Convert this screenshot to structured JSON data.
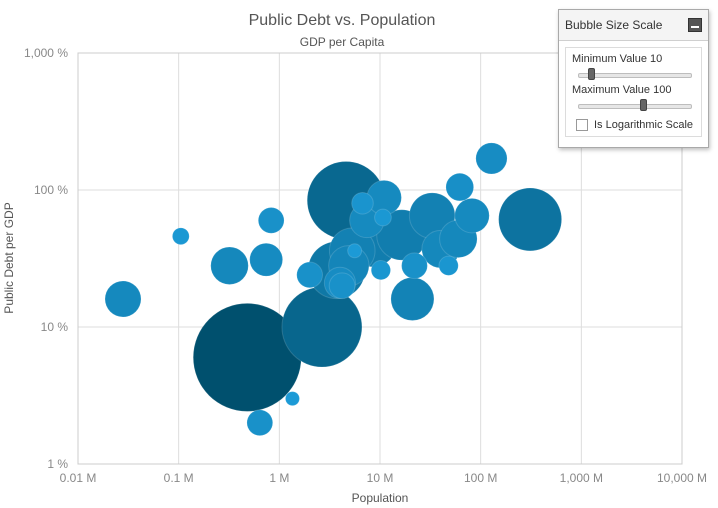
{
  "chart_data": {
    "type": "scatter",
    "title": "Public Debt vs. Population",
    "subtitle": "GDP per Capita",
    "xlabel": "Population",
    "ylabel": "Public Debt per GDP",
    "x_scale": "log",
    "y_scale": "log",
    "xlim": [
      10000,
      10000000000
    ],
    "ylim": [
      1,
      1000
    ],
    "x_ticks": [
      {
        "value": 10000,
        "label": "0.01 M"
      },
      {
        "value": 100000,
        "label": "0.1 M"
      },
      {
        "value": 1000000,
        "label": "1 M"
      },
      {
        "value": 10000000,
        "label": "10 M"
      },
      {
        "value": 100000000,
        "label": "100 M"
      },
      {
        "value": 1000000000,
        "label": "1,000 M"
      },
      {
        "value": 10000000000,
        "label": "10,000 M"
      }
    ],
    "y_ticks": [
      {
        "value": 1,
        "label": "1 %"
      },
      {
        "value": 10,
        "label": "10 %"
      },
      {
        "value": 100,
        "label": "100 %"
      },
      {
        "value": 1000,
        "label": "1,000 %"
      }
    ],
    "grid": true,
    "legend": "none",
    "color_low": "#1c9ad6",
    "color_high": "#00506e",
    "points": [
      {
        "x": 28000,
        "y": 16,
        "size": 15
      },
      {
        "x": 105000,
        "y": 46,
        "size": 5
      },
      {
        "x": 320000,
        "y": 28,
        "size": 16
      },
      {
        "x": 480000,
        "y": 6,
        "size": 100
      },
      {
        "x": 640000,
        "y": 2,
        "size": 9
      },
      {
        "x": 740000,
        "y": 31,
        "size": 13
      },
      {
        "x": 830000,
        "y": 60,
        "size": 9
      },
      {
        "x": 1350000,
        "y": 3,
        "size": 4
      },
      {
        "x": 2000000,
        "y": 24,
        "size": 9
      },
      {
        "x": 2650000,
        "y": 10,
        "size": 58
      },
      {
        "x": 3700000,
        "y": 26,
        "size": 32
      },
      {
        "x": 4000000,
        "y": 21,
        "size": 12
      },
      {
        "x": 4200000,
        "y": 20,
        "size": 9
      },
      {
        "x": 4600000,
        "y": 84,
        "size": 55
      },
      {
        "x": 4900000,
        "y": 28,
        "size": 18
      },
      {
        "x": 5300000,
        "y": 36,
        "size": 22
      },
      {
        "x": 5600000,
        "y": 36,
        "size": 4
      },
      {
        "x": 6700000,
        "y": 80,
        "size": 7
      },
      {
        "x": 7400000,
        "y": 60,
        "size": 14
      },
      {
        "x": 8400000,
        "y": 42,
        "size": 26
      },
      {
        "x": 10200000,
        "y": 26,
        "size": 6
      },
      {
        "x": 10700000,
        "y": 63,
        "size": 5
      },
      {
        "x": 11000000,
        "y": 88,
        "size": 14
      },
      {
        "x": 16500000,
        "y": 47,
        "size": 26
      },
      {
        "x": 21000000,
        "y": 16,
        "size": 20
      },
      {
        "x": 22000000,
        "y": 28,
        "size": 9
      },
      {
        "x": 33000000,
        "y": 65,
        "size": 22
      },
      {
        "x": 40000000,
        "y": 37,
        "size": 16
      },
      {
        "x": 48000000,
        "y": 28,
        "size": 6
      },
      {
        "x": 60000000,
        "y": 44,
        "size": 16
      },
      {
        "x": 62000000,
        "y": 105,
        "size": 10
      },
      {
        "x": 82000000,
        "y": 65,
        "size": 14
      },
      {
        "x": 128000000,
        "y": 170,
        "size": 12
      },
      {
        "x": 310000000,
        "y": 61,
        "size": 38
      }
    ]
  },
  "scale_panel": {
    "title": "Bubble Size Scale",
    "min_label": "Minimum Value 10",
    "max_label": "Maximum Value 100",
    "min_value": 10,
    "max_value": 100,
    "slider_range": [
      0,
      200
    ],
    "log_label": "Is Logarithmic Scale",
    "log_checked": false
  }
}
